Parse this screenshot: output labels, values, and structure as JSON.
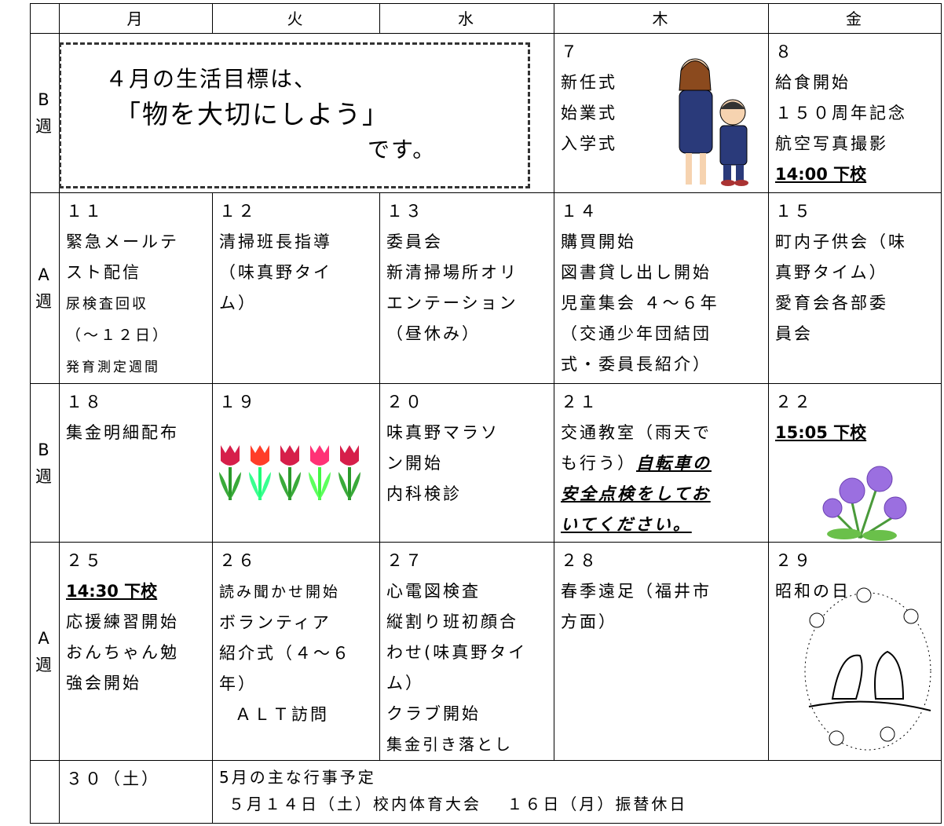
{
  "header": {
    "days": [
      "月",
      "火",
      "水",
      "木",
      "金"
    ]
  },
  "weeks": [
    {
      "label": [
        "B",
        "週"
      ],
      "goal": [
        "４月の生活目標は、",
        "「物を大切にしよう」",
        "です。"
      ],
      "days": [
        [
          "７",
          "新任式",
          "始業式",
          "入学式"
        ],
        [
          "８",
          "給食開始",
          "１５０周年記念",
          "航空写真撮影",
          "14:00 下校"
        ]
      ]
    },
    {
      "label": [
        "A",
        "週"
      ],
      "days": [
        [
          "１１",
          "緊急メールテ",
          "スト配信",
          "尿検査回収",
          "（～１２日）",
          "発育測定週間"
        ],
        [
          "１２",
          "清掃班長指導",
          "（味真野タイ",
          "ム）"
        ],
        [
          "１３",
          "委員会",
          "新清掃場所オリ",
          "エンテーション",
          "（昼休み）"
        ],
        [
          "１４",
          "購買開始",
          "図書貸し出し開始",
          "児童集会 ４～６年",
          "（交通少年団結団",
          "式・委員長紹介）"
        ],
        [
          "１５",
          "町内子供会（味",
          "真野タイム）",
          "愛育会各部委",
          "員会"
        ]
      ]
    },
    {
      "label": [
        "B",
        "週"
      ],
      "days": [
        [
          "１８",
          "集金明細配布"
        ],
        [
          "１９"
        ],
        [
          "２０",
          "味真野マラソ",
          "ン開始",
          "内科検診"
        ],
        [
          "２１",
          [
            "交通教室（雨天で"
          ],
          [
            "も行う）",
            "自転車の"
          ],
          [
            "安全点検をしてお"
          ],
          [
            "いてください。"
          ]
        ],
        [
          "２２",
          "15:05 下校"
        ]
      ]
    },
    {
      "label": [
        "A",
        "週"
      ],
      "days": [
        [
          "２５",
          "14:30 下校",
          "応援練習開始",
          "おんちゃん勉",
          "強会開始"
        ],
        [
          "２６",
          "読み聞かせ開始",
          "ボランティア",
          "紹介式（４～６",
          "年）",
          "ＡＬＴ訪問"
        ],
        [
          "２７",
          "心電図検査",
          "縦割り班初顔合",
          "わせ(味真野タイ",
          "ム）",
          "クラブ開始",
          "集金引き落とし"
        ],
        [
          "２８",
          "春季遠足（福井市",
          "方面）"
        ],
        [
          "２９",
          "昭和の日"
        ]
      ]
    },
    {
      "days": [
        [
          "３０（土）"
        ]
      ],
      "note": [
        "5月の主な行事予定",
        "５月１４日（土）校内体育大会　 １６日（月）振替休日"
      ]
    }
  ]
}
